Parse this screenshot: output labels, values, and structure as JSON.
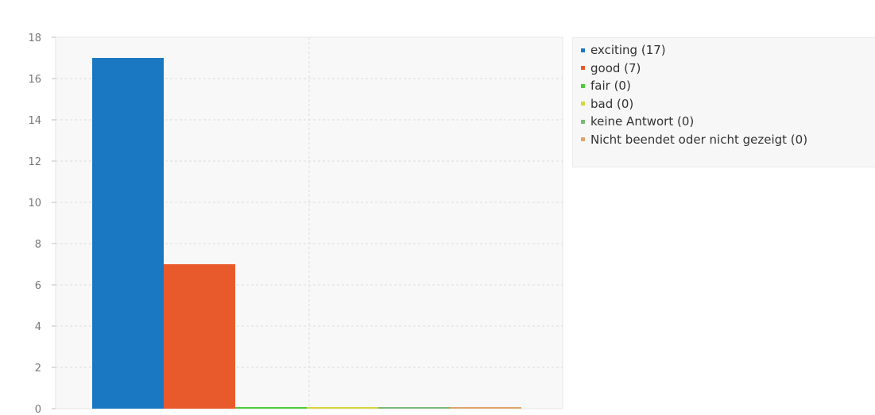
{
  "chart_data": {
    "type": "bar",
    "categories": [
      "exciting",
      "good",
      "fair",
      "bad",
      "keine Antwort",
      "Nicht beendet oder nicht gezeigt"
    ],
    "values": [
      17,
      7,
      0,
      0,
      0,
      0
    ],
    "colors": [
      "#1a78c2",
      "#e85a2c",
      "#4ccc3a",
      "#d7d43a",
      "#7cb87a",
      "#e0a56c"
    ],
    "ylim": [
      0,
      18
    ],
    "yticks": [
      "0",
      "2",
      "4",
      "6",
      "8",
      "10",
      "12",
      "14",
      "16",
      "18"
    ],
    "grid": true,
    "legend_placement": "right",
    "legend": [
      "exciting (17)",
      "good (7)",
      "fair (0)",
      "bad (0)",
      "keine Antwort (0)",
      "Nicht beendet oder nicht gezeigt (0)"
    ]
  }
}
